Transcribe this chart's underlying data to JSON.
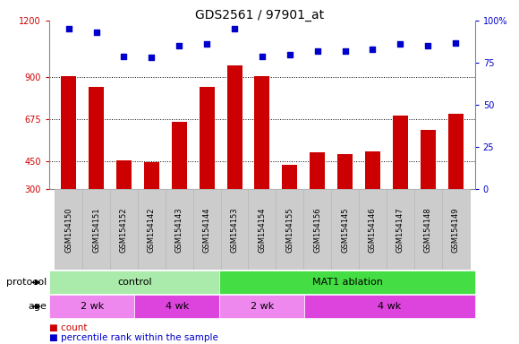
{
  "title": "GDS2561 / 97901_at",
  "categories": [
    "GSM154150",
    "GSM154151",
    "GSM154152",
    "GSM154142",
    "GSM154143",
    "GSM154144",
    "GSM154153",
    "GSM154154",
    "GSM154155",
    "GSM154156",
    "GSM154145",
    "GSM154146",
    "GSM154147",
    "GSM154148",
    "GSM154149"
  ],
  "bar_values": [
    905,
    845,
    455,
    443,
    658,
    845,
    960,
    905,
    430,
    495,
    487,
    502,
    695,
    618,
    703
  ],
  "dot_values": [
    95,
    93,
    79,
    78,
    85,
    86,
    95,
    79,
    80,
    82,
    82,
    83,
    86,
    85,
    87
  ],
  "ylim_left": [
    300,
    1200
  ],
  "yticks_left": [
    300,
    450,
    675,
    900,
    1200
  ],
  "ylim_right": [
    0,
    100
  ],
  "yticks_right": [
    0,
    25,
    50,
    75,
    100
  ],
  "bar_color": "#cc0000",
  "dot_color": "#0000cc",
  "bg_color": "#ffffff",
  "protocol_groups": [
    {
      "label": "control",
      "start": 0,
      "end": 6,
      "color": "#aaeaaa"
    },
    {
      "label": "MAT1 ablation",
      "start": 6,
      "end": 15,
      "color": "#44dd44"
    }
  ],
  "age_groups": [
    {
      "label": "2 wk",
      "start": 0,
      "end": 3,
      "color": "#ee88ee"
    },
    {
      "label": "4 wk",
      "start": 3,
      "end": 6,
      "color": "#dd44dd"
    },
    {
      "label": "2 wk",
      "start": 6,
      "end": 9,
      "color": "#ee88ee"
    },
    {
      "label": "4 wk",
      "start": 9,
      "end": 15,
      "color": "#dd44dd"
    }
  ],
  "xlabel_protocol": "protocol",
  "xlabel_age": "age",
  "tick_label_color": "#cc0000",
  "right_tick_color": "#0000cc",
  "tick_fontsize": 7,
  "title_fontsize": 10,
  "label_fontsize": 8,
  "cat_fontsize": 6
}
